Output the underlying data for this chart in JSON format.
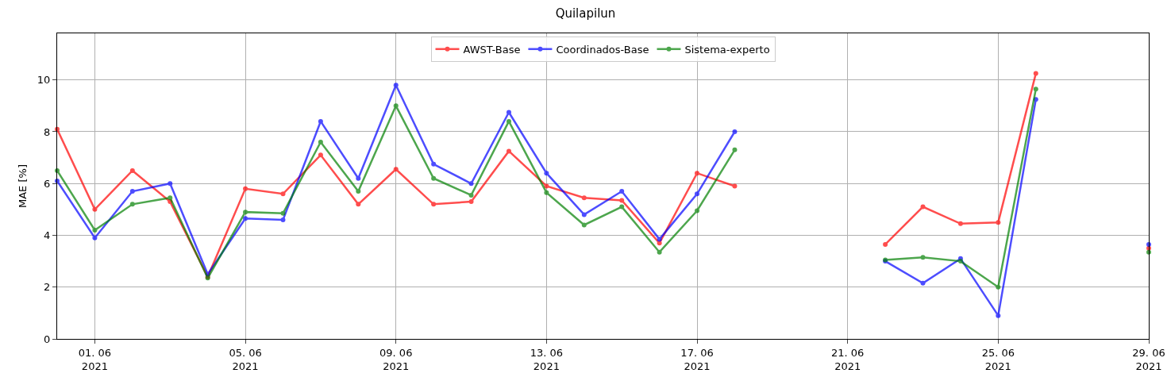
{
  "chart_data": {
    "type": "line",
    "title": "Quilapilun",
    "ylabel": "MAE [%]",
    "x": [
      "2021-05-31",
      "2021-06-01",
      "2021-06-02",
      "2021-06-03",
      "2021-06-04",
      "2021-06-05",
      "2021-06-06",
      "2021-06-07",
      "2021-06-08",
      "2021-06-09",
      "2021-06-10",
      "2021-06-11",
      "2021-06-12",
      "2021-06-13",
      "2021-06-14",
      "2021-06-15",
      "2021-06-16",
      "2021-06-17",
      "2021-06-18",
      "2021-06-19",
      "2021-06-20",
      "2021-06-21",
      "2021-06-22",
      "2021-06-23",
      "2021-06-24",
      "2021-06-25",
      "2021-06-26",
      "2021-06-27",
      "2021-06-28",
      "2021-06-29"
    ],
    "series": [
      {
        "name": "AWST-Base",
        "color": "#ff0000",
        "values": [
          8.1,
          5.0,
          6.5,
          5.3,
          2.4,
          5.8,
          5.6,
          7.1,
          5.2,
          6.55,
          5.2,
          5.3,
          7.25,
          5.9,
          5.45,
          5.35,
          3.7,
          6.4,
          5.9,
          null,
          null,
          null,
          3.65,
          5.1,
          4.45,
          4.5,
          10.25,
          null,
          null,
          3.5
        ]
      },
      {
        "name": "Coordinados-Base",
        "color": "#0000ff",
        "values": [
          6.1,
          3.9,
          5.7,
          6.0,
          2.5,
          4.65,
          4.6,
          8.4,
          6.2,
          9.8,
          6.75,
          6.0,
          8.75,
          6.4,
          4.8,
          5.7,
          3.85,
          5.6,
          8.0,
          null,
          null,
          null,
          3.0,
          2.15,
          3.1,
          0.9,
          9.25,
          null,
          null,
          3.65
        ]
      },
      {
        "name": "Sistema-experto",
        "color": "#008000",
        "values": [
          6.5,
          4.2,
          5.2,
          5.45,
          2.35,
          4.9,
          4.85,
          7.6,
          5.7,
          9.0,
          6.2,
          5.55,
          8.4,
          5.65,
          4.4,
          5.1,
          3.35,
          4.95,
          7.3,
          null,
          null,
          null,
          3.05,
          3.15,
          3.0,
          2.0,
          9.65,
          null,
          null,
          3.35
        ]
      }
    ],
    "xlim": [
      "2021-05-31",
      "2021-06-29"
    ],
    "xticks": [
      {
        "value": "2021-06-01",
        "label": "01. 06\n2021"
      },
      {
        "value": "2021-06-05",
        "label": "05. 06\n2021"
      },
      {
        "value": "2021-06-09",
        "label": "09. 06\n2021"
      },
      {
        "value": "2021-06-13",
        "label": "13. 06\n2021"
      },
      {
        "value": "2021-06-17",
        "label": "17. 06\n2021"
      },
      {
        "value": "2021-06-21",
        "label": "21. 06\n2021"
      },
      {
        "value": "2021-06-25",
        "label": "25. 06\n2021"
      },
      {
        "value": "2021-06-29",
        "label": "29. 06\n2021"
      }
    ],
    "ylim": [
      0,
      11.8
    ],
    "yticks": [
      0,
      2,
      4,
      6,
      8,
      10
    ],
    "grid": true,
    "legend": "top",
    "marker": "circle",
    "line_style": "solid"
  }
}
